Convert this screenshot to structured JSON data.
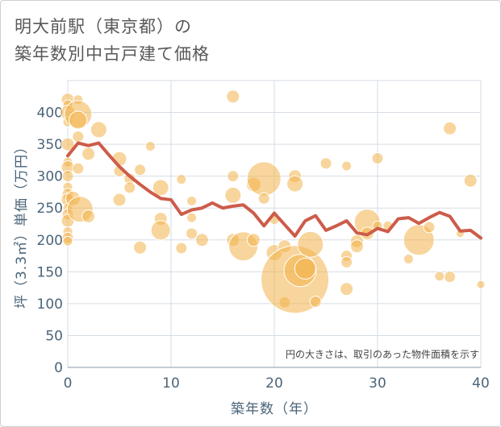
{
  "title_lines": [
    "明大前駅（東京都）の",
    "築年数別中古戸建て価格"
  ],
  "chart_data": {
    "type": "scatter",
    "title": "明大前駅（東京都）の築年数別中古戸建て価格",
    "xlabel": "築年数（年）",
    "ylabel": "坪（3.3㎡）単価（万円）",
    "xlim": [
      0,
      40
    ],
    "ylim": [
      0,
      450
    ],
    "xticks": [
      0,
      10,
      20,
      30,
      40
    ],
    "yticks": [
      0,
      50,
      100,
      150,
      200,
      250,
      300,
      350,
      400
    ],
    "grid": true,
    "note": "円の大きさは、取引のあった物件面積を示す",
    "colors": {
      "bubble": "#f2b24a",
      "line": "#cd5c4a",
      "axis_text": "#4a6478",
      "grid": "#d5dde4"
    },
    "bubbles": [
      {
        "x": 0,
        "y": 420,
        "s": 8
      },
      {
        "x": 0,
        "y": 412,
        "s": 6
      },
      {
        "x": 0,
        "y": 400,
        "s": 9
      },
      {
        "x": 0,
        "y": 385,
        "s": 6
      },
      {
        "x": 0,
        "y": 350,
        "s": 8
      },
      {
        "x": 0,
        "y": 322,
        "s": 6
      },
      {
        "x": 0,
        "y": 314,
        "s": 8
      },
      {
        "x": 0,
        "y": 300,
        "s": 7
      },
      {
        "x": 0,
        "y": 283,
        "s": 6
      },
      {
        "x": 0,
        "y": 272,
        "s": 7
      },
      {
        "x": 0,
        "y": 263,
        "s": 8
      },
      {
        "x": 0,
        "y": 250,
        "s": 6
      },
      {
        "x": 0,
        "y": 240,
        "s": 7
      },
      {
        "x": 0,
        "y": 230,
        "s": 8
      },
      {
        "x": 0,
        "y": 213,
        "s": 6
      },
      {
        "x": 0,
        "y": 203,
        "s": 7
      },
      {
        "x": 0,
        "y": 198,
        "s": 6
      },
      {
        "x": 0.5,
        "y": 265,
        "s": 9
      },
      {
        "x": 1,
        "y": 420,
        "s": 6
      },
      {
        "x": 1,
        "y": 397,
        "s": 17
      },
      {
        "x": 1,
        "y": 388,
        "s": 11
      },
      {
        "x": 1,
        "y": 362,
        "s": 7
      },
      {
        "x": 1,
        "y": 312,
        "s": 7
      },
      {
        "x": 1.2,
        "y": 248,
        "s": 16
      },
      {
        "x": 2,
        "y": 335,
        "s": 8
      },
      {
        "x": 2,
        "y": 237,
        "s": 8
      },
      {
        "x": 3,
        "y": 373,
        "s": 10
      },
      {
        "x": 5,
        "y": 327,
        "s": 9
      },
      {
        "x": 5,
        "y": 308,
        "s": 7
      },
      {
        "x": 5,
        "y": 263,
        "s": 8
      },
      {
        "x": 6,
        "y": 296,
        "s": 7
      },
      {
        "x": 6,
        "y": 282,
        "s": 7
      },
      {
        "x": 7,
        "y": 310,
        "s": 7
      },
      {
        "x": 7,
        "y": 188,
        "s": 8
      },
      {
        "x": 8,
        "y": 347,
        "s": 6
      },
      {
        "x": 9,
        "y": 282,
        "s": 10
      },
      {
        "x": 9,
        "y": 233,
        "s": 8
      },
      {
        "x": 9,
        "y": 215,
        "s": 12
      },
      {
        "x": 11,
        "y": 295,
        "s": 6
      },
      {
        "x": 11,
        "y": 187,
        "s": 7
      },
      {
        "x": 12,
        "y": 261,
        "s": 6
      },
      {
        "x": 12,
        "y": 235,
        "s": 6
      },
      {
        "x": 12,
        "y": 210,
        "s": 7
      },
      {
        "x": 13,
        "y": 200,
        "s": 8
      },
      {
        "x": 16,
        "y": 425,
        "s": 8
      },
      {
        "x": 16,
        "y": 300,
        "s": 7
      },
      {
        "x": 16,
        "y": 270,
        "s": 10
      },
      {
        "x": 16,
        "y": 200,
        "s": 8
      },
      {
        "x": 17,
        "y": 190,
        "s": 18
      },
      {
        "x": 18,
        "y": 287,
        "s": 9
      },
      {
        "x": 18,
        "y": 200,
        "s": 8
      },
      {
        "x": 19,
        "y": 296,
        "s": 21
      },
      {
        "x": 19,
        "y": 265,
        "s": 7
      },
      {
        "x": 20,
        "y": 232,
        "s": 6
      },
      {
        "x": 20,
        "y": 180,
        "s": 10
      },
      {
        "x": 21,
        "y": 190,
        "s": 8
      },
      {
        "x": 21,
        "y": 102,
        "s": 7
      },
      {
        "x": 22,
        "y": 300,
        "s": 8
      },
      {
        "x": 22,
        "y": 288,
        "s": 10
      },
      {
        "x": 22,
        "y": 138,
        "s": 42
      },
      {
        "x": 22.5,
        "y": 152,
        "s": 20
      },
      {
        "x": 23,
        "y": 155,
        "s": 13
      },
      {
        "x": 23.5,
        "y": 193,
        "s": 16
      },
      {
        "x": 24,
        "y": 103,
        "s": 7
      },
      {
        "x": 25,
        "y": 320,
        "s": 7
      },
      {
        "x": 27,
        "y": 316,
        "s": 6
      },
      {
        "x": 27,
        "y": 175,
        "s": 7
      },
      {
        "x": 27,
        "y": 165,
        "s": 7
      },
      {
        "x": 27,
        "y": 123,
        "s": 8
      },
      {
        "x": 28,
        "y": 198,
        "s": 8
      },
      {
        "x": 28,
        "y": 190,
        "s": 8
      },
      {
        "x": 29,
        "y": 228,
        "s": 16
      },
      {
        "x": 29,
        "y": 210,
        "s": 8
      },
      {
        "x": 30,
        "y": 328,
        "s": 7
      },
      {
        "x": 30,
        "y": 222,
        "s": 6
      },
      {
        "x": 31,
        "y": 222,
        "s": 6
      },
      {
        "x": 33,
        "y": 170,
        "s": 6
      },
      {
        "x": 34,
        "y": 200,
        "s": 19
      },
      {
        "x": 35,
        "y": 220,
        "s": 7
      },
      {
        "x": 36,
        "y": 143,
        "s": 6
      },
      {
        "x": 37,
        "y": 375,
        "s": 8
      },
      {
        "x": 37,
        "y": 142,
        "s": 7
      },
      {
        "x": 38,
        "y": 210,
        "s": 5
      },
      {
        "x": 39,
        "y": 293,
        "s": 8
      },
      {
        "x": 40,
        "y": 130,
        "s": 5
      }
    ],
    "line": {
      "x": [
        0,
        1,
        2,
        3,
        4,
        5,
        6,
        7,
        8,
        9,
        10,
        11,
        12,
        13,
        14,
        15,
        16,
        17,
        18,
        19,
        20,
        21,
        22,
        23,
        24,
        25,
        26,
        27,
        28,
        29,
        30,
        31,
        32,
        33,
        34,
        35,
        36,
        37,
        38,
        39,
        40
      ],
      "y": [
        332,
        352,
        348,
        352,
        333,
        315,
        300,
        287,
        275,
        265,
        263,
        240,
        247,
        250,
        258,
        250,
        253,
        255,
        242,
        222,
        242,
        224,
        206,
        230,
        238,
        215,
        222,
        230,
        211,
        208,
        218,
        213,
        233,
        235,
        226,
        235,
        243,
        237,
        214,
        215,
        203
      ]
    }
  }
}
